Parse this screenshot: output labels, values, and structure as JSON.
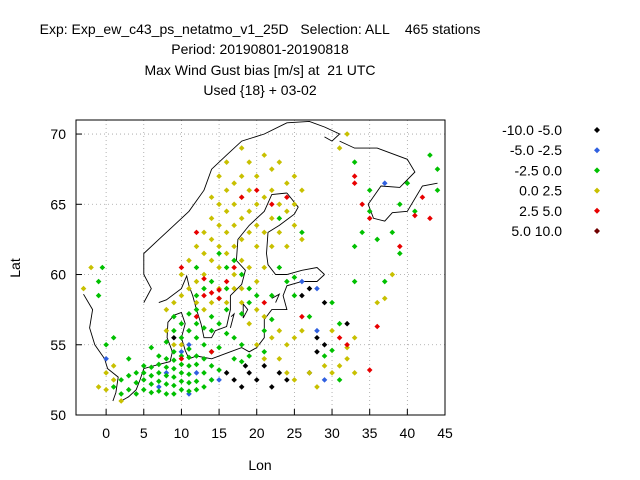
{
  "title": {
    "line1": "Exp: Exp_ew_c43_ps_netatmo_v1_25D   Selection: ALL    465 stations",
    "line2": "Period: 20190801-20190818",
    "line3": "Max Wind Gust bias [m/s] at  21 UTC",
    "line4": "Used {18} + 03-02"
  },
  "axes": {
    "xlabel": "Lon",
    "ylabel": "Lat",
    "xticks": [
      "0",
      "5",
      "10",
      "15",
      "20",
      "25",
      "30",
      "35",
      "40",
      "45"
    ],
    "yticks": [
      "50",
      "55",
      "60",
      "65",
      "70"
    ]
  },
  "chart_data": {
    "type": "scatter",
    "xlim": [
      -4,
      45
    ],
    "ylim": [
      50,
      71
    ],
    "grid": true,
    "legend_position": "top-right",
    "series": [
      {
        "name": "-10.0 -5.0",
        "color": "#000000",
        "points": [
          [
            16,
            53
          ],
          [
            17,
            52.5
          ],
          [
            18,
            52
          ],
          [
            18.5,
            53.5
          ],
          [
            19,
            53
          ],
          [
            20,
            52.5
          ],
          [
            21,
            53.5
          ],
          [
            22,
            52
          ],
          [
            23,
            53
          ],
          [
            26,
            58.5
          ],
          [
            27,
            59
          ],
          [
            27,
            53
          ],
          [
            28,
            54.5
          ],
          [
            28,
            55.5
          ],
          [
            29,
            55
          ],
          [
            29,
            58
          ],
          [
            32,
            56.5
          ],
          [
            9,
            55.5
          ],
          [
            24,
            52.5
          ]
        ]
      },
      {
        "name": "-5.0 -2.5",
        "color": "#3060e0",
        "points": [
          [
            0,
            54
          ],
          [
            7,
            52
          ],
          [
            8,
            53
          ],
          [
            10,
            54.5
          ],
          [
            11,
            55
          ],
          [
            12,
            53
          ],
          [
            14,
            52.5
          ],
          [
            15,
            52.5
          ],
          [
            26,
            59.5
          ],
          [
            28,
            56
          ],
          [
            28,
            59
          ],
          [
            29,
            52.5
          ],
          [
            37,
            66.5
          ],
          [
            11,
            51.5
          ]
        ]
      },
      {
        "name": "-2.5 0.0",
        "color": "#00c000",
        "points": [
          [
            -1,
            59.5
          ],
          [
            -1,
            58.5
          ],
          [
            -0.5,
            60.5
          ],
          [
            0,
            55
          ],
          [
            1,
            52
          ],
          [
            2,
            51.5
          ],
          [
            2,
            52.5
          ],
          [
            3,
            51.8
          ],
          [
            3,
            52.8
          ],
          [
            4,
            51.5
          ],
          [
            4,
            52.3
          ],
          [
            4,
            53
          ],
          [
            5,
            51.8
          ],
          [
            5,
            52.5
          ],
          [
            5,
            53
          ],
          [
            5,
            53.5
          ],
          [
            6,
            51.6
          ],
          [
            6,
            52.2
          ],
          [
            6,
            52.8
          ],
          [
            6,
            53.4
          ],
          [
            7,
            51.7
          ],
          [
            7,
            52.4
          ],
          [
            7,
            53
          ],
          [
            7,
            53.6
          ],
          [
            7,
            54.2
          ],
          [
            8,
            51.5
          ],
          [
            8,
            52.2
          ],
          [
            8,
            52.8
          ],
          [
            8,
            53.4
          ],
          [
            8,
            54
          ],
          [
            8,
            55.2
          ],
          [
            9,
            51.5
          ],
          [
            9,
            52.1
          ],
          [
            9,
            52.7
          ],
          [
            9,
            53.3
          ],
          [
            9,
            53.9
          ],
          [
            9,
            54.5
          ],
          [
            9,
            56
          ],
          [
            9,
            57
          ],
          [
            10,
            51.8
          ],
          [
            10,
            52.4
          ],
          [
            10,
            53
          ],
          [
            10,
            53.6
          ],
          [
            10,
            54.2
          ],
          [
            10,
            55.5
          ],
          [
            10,
            56.5
          ],
          [
            11,
            51.7
          ],
          [
            11,
            52.3
          ],
          [
            11,
            52.9
          ],
          [
            11,
            53.5
          ],
          [
            11,
            54.1
          ],
          [
            11,
            54.7
          ],
          [
            11,
            56
          ],
          [
            11,
            57.2
          ],
          [
            12,
            51.8
          ],
          [
            12,
            52.4
          ],
          [
            12,
            53.6
          ],
          [
            12,
            54.2
          ],
          [
            12,
            55.5
          ],
          [
            12,
            56.5
          ],
          [
            12,
            57.5
          ],
          [
            12,
            58.5
          ],
          [
            12,
            60.5
          ],
          [
            13,
            52
          ],
          [
            13,
            53
          ],
          [
            13,
            54
          ],
          [
            13,
            55
          ],
          [
            13,
            56.2
          ],
          [
            13,
            59
          ],
          [
            14,
            52.5
          ],
          [
            14,
            53.5
          ],
          [
            14,
            54.5
          ],
          [
            14,
            57
          ],
          [
            14,
            59.5
          ],
          [
            15,
            53.2
          ],
          [
            15,
            54.8
          ],
          [
            15,
            56.5
          ],
          [
            15,
            58.3
          ],
          [
            15,
            61.5
          ],
          [
            16,
            55.8
          ],
          [
            16,
            57.5
          ],
          [
            16,
            59
          ],
          [
            16,
            60.5
          ],
          [
            17,
            54
          ],
          [
            17,
            55.5
          ],
          [
            17,
            61
          ],
          [
            18,
            53.8
          ],
          [
            18,
            55
          ],
          [
            18,
            57.2
          ],
          [
            18,
            60
          ],
          [
            19,
            54.2
          ],
          [
            19,
            59
          ],
          [
            20,
            58.5
          ],
          [
            21,
            54.5
          ],
          [
            21,
            56
          ],
          [
            22,
            56.8
          ],
          [
            22,
            58.5
          ],
          [
            23,
            60.5
          ],
          [
            24,
            59.5
          ],
          [
            25,
            59.8
          ],
          [
            25,
            58.5
          ],
          [
            27,
            57
          ],
          [
            29,
            54.2
          ],
          [
            30,
            54.6
          ],
          [
            30,
            58
          ],
          [
            31,
            56.5
          ],
          [
            33,
            59.5
          ],
          [
            33,
            62
          ],
          [
            34,
            63
          ],
          [
            35,
            64.5
          ],
          [
            35,
            66
          ],
          [
            36,
            62.5
          ],
          [
            37,
            59.5
          ],
          [
            38,
            63
          ],
          [
            39,
            61.5
          ],
          [
            39,
            65
          ],
          [
            40,
            66.5
          ],
          [
            41,
            64.5
          ],
          [
            43,
            68.5
          ],
          [
            44,
            67.5
          ],
          [
            44,
            66
          ],
          [
            33,
            68
          ],
          [
            31,
            52.5
          ],
          [
            26,
            63
          ],
          [
            23,
            64
          ],
          [
            19,
            58
          ],
          [
            14,
            56
          ],
          [
            6,
            54.8
          ],
          [
            3,
            54
          ],
          [
            1,
            55.5
          ]
        ]
      },
      {
        "name": "0.0 2.5",
        "color": "#c8c000",
        "points": [
          [
            -3,
            59
          ],
          [
            -2,
            60.5
          ],
          [
            -1,
            52
          ],
          [
            0,
            51.8
          ],
          [
            0,
            53
          ],
          [
            1,
            53.5
          ],
          [
            1,
            52.5
          ],
          [
            2,
            51
          ],
          [
            8,
            56
          ],
          [
            8,
            57.5
          ],
          [
            9,
            58
          ],
          [
            10,
            58.5
          ],
          [
            10,
            60
          ],
          [
            11,
            59
          ],
          [
            11,
            61
          ],
          [
            12,
            59.5
          ],
          [
            12,
            62
          ],
          [
            13,
            60
          ],
          [
            13,
            61.5
          ],
          [
            13,
            63
          ],
          [
            14,
            61
          ],
          [
            14,
            62.5
          ],
          [
            14,
            64
          ],
          [
            14,
            65.5
          ],
          [
            15,
            60.5
          ],
          [
            15,
            62
          ],
          [
            15,
            63.5
          ],
          [
            15,
            65
          ],
          [
            15,
            67
          ],
          [
            16,
            61.5
          ],
          [
            16,
            63
          ],
          [
            16,
            64.5
          ],
          [
            16,
            66
          ],
          [
            16,
            68
          ],
          [
            17,
            60
          ],
          [
            17,
            62
          ],
          [
            17,
            63.5
          ],
          [
            17,
            65
          ],
          [
            17,
            66.5
          ],
          [
            18,
            59
          ],
          [
            18,
            61
          ],
          [
            18,
            62.5
          ],
          [
            18,
            64
          ],
          [
            18,
            65.5
          ],
          [
            18,
            67
          ],
          [
            18,
            69
          ],
          [
            19,
            60.5
          ],
          [
            19,
            63
          ],
          [
            19,
            64.5
          ],
          [
            19,
            66
          ],
          [
            19,
            68
          ],
          [
            20,
            59.5
          ],
          [
            20,
            62
          ],
          [
            20,
            63.5
          ],
          [
            20,
            65
          ],
          [
            20,
            67
          ],
          [
            21,
            60.5
          ],
          [
            21,
            63
          ],
          [
            21,
            65.5
          ],
          [
            21,
            68.5
          ],
          [
            22,
            62
          ],
          [
            22,
            64
          ],
          [
            22,
            66
          ],
          [
            22,
            67.5
          ],
          [
            23,
            63
          ],
          [
            23,
            65
          ],
          [
            23,
            68
          ],
          [
            24,
            62
          ],
          [
            24,
            64.5
          ],
          [
            24,
            66.5
          ],
          [
            25,
            63.5
          ],
          [
            25,
            65
          ],
          [
            25,
            67
          ],
          [
            26,
            62.5
          ],
          [
            26,
            66
          ],
          [
            19,
            56.5
          ],
          [
            20,
            57.5
          ],
          [
            21,
            57
          ],
          [
            22,
            55.5
          ],
          [
            23,
            56
          ],
          [
            24,
            55
          ],
          [
            25,
            55.5
          ],
          [
            26,
            56
          ],
          [
            23,
            54
          ],
          [
            24,
            53
          ],
          [
            25,
            52.5
          ],
          [
            27,
            53
          ],
          [
            28,
            52
          ],
          [
            29,
            53.5
          ],
          [
            30,
            53
          ],
          [
            31,
            53.5
          ],
          [
            32,
            54
          ],
          [
            33,
            53
          ],
          [
            30,
            56
          ],
          [
            32,
            54.8
          ],
          [
            33,
            55.5
          ],
          [
            36,
            58
          ],
          [
            37,
            58.3
          ],
          [
            38,
            60
          ],
          [
            32,
            70
          ],
          [
            31,
            69
          ],
          [
            10,
            55
          ],
          [
            9,
            55
          ],
          [
            14,
            58
          ],
          [
            13,
            57.5
          ],
          [
            12,
            58
          ],
          [
            16,
            58
          ],
          [
            17,
            59
          ],
          [
            18,
            58
          ],
          [
            15,
            59
          ],
          [
            20,
            55
          ],
          [
            21,
            54
          ]
        ]
      },
      {
        "name": "2.5 5.0",
        "color": "#e80000",
        "points": [
          [
            10,
            60.5
          ],
          [
            12,
            63
          ],
          [
            13,
            58.5
          ],
          [
            13,
            59.7
          ],
          [
            14,
            58.7
          ],
          [
            15,
            58.3
          ],
          [
            15,
            58.9
          ],
          [
            16,
            59.5
          ],
          [
            17,
            60.5
          ],
          [
            18,
            65.5
          ],
          [
            20,
            66
          ],
          [
            22,
            65
          ],
          [
            21,
            58
          ],
          [
            24,
            65.5
          ],
          [
            26,
            57
          ],
          [
            31,
            55.5
          ],
          [
            32,
            55
          ],
          [
            33,
            67
          ],
          [
            33,
            66.5
          ],
          [
            34,
            65
          ],
          [
            35,
            64
          ],
          [
            35,
            53.2
          ],
          [
            39,
            62
          ],
          [
            41,
            64.2
          ],
          [
            42,
            65.5
          ],
          [
            43,
            64
          ],
          [
            36,
            56.3
          ],
          [
            14,
            54.5
          ],
          [
            10,
            54
          ],
          [
            12,
            57
          ]
        ]
      },
      {
        "name": "5.0 10.0",
        "color": "#700000",
        "points": []
      }
    ]
  }
}
